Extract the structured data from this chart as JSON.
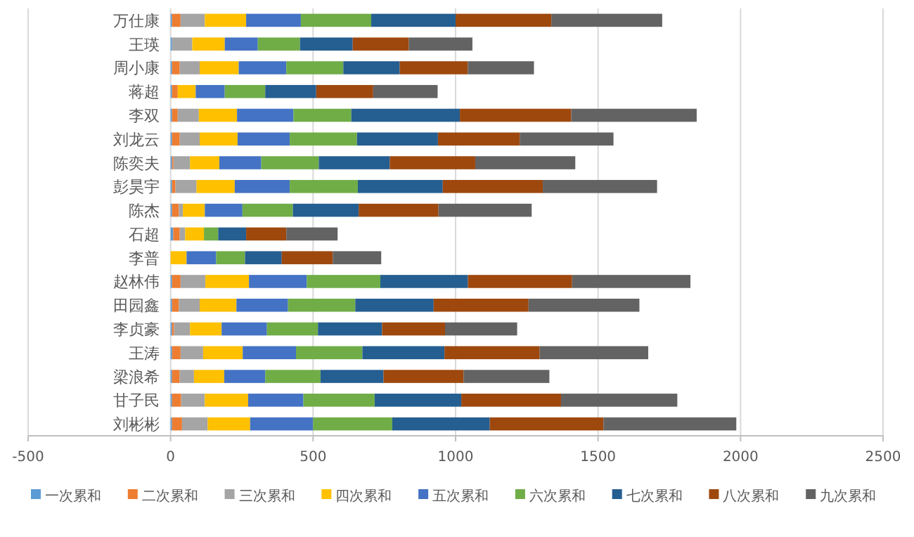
{
  "chart_data": {
    "type": "bar",
    "orientation": "horizontal",
    "stacked": true,
    "categories": [
      "万仕康",
      "王瑛",
      "周小康",
      "蒋超",
      "李双",
      "刘龙云",
      "陈奕夫",
      "彭昊宇",
      "陈杰",
      "石超",
      "李普",
      "赵林伟",
      "田园鑫",
      "李贞豪",
      "王涛",
      "梁浪希",
      "甘子民",
      "刘彬彬"
    ],
    "series": [
      {
        "name": "一次累和",
        "color": "#5b9bd5",
        "values": [
          5,
          5,
          5,
          5,
          5,
          5,
          5,
          5,
          5,
          9,
          0,
          5,
          5,
          5,
          5,
          5,
          5,
          5
        ]
      },
      {
        "name": "二次累和",
        "color": "#ed7d31",
        "values": [
          30,
          0,
          27,
          20,
          20,
          27,
          5,
          12,
          24,
          23,
          0,
          30,
          24,
          7,
          30,
          27,
          32,
          35
        ]
      },
      {
        "name": "三次累和",
        "color": "#a5a5a5",
        "values": [
          85,
          71,
          70,
          0,
          74,
          70,
          58,
          74,
          14,
          19,
          0,
          87,
          73,
          56,
          79,
          50,
          83,
          90
        ]
      },
      {
        "name": "四次累和",
        "color": "#ffc000",
        "values": [
          145,
          114,
          137,
          63,
          134,
          133,
          103,
          134,
          77,
          66,
          56,
          153,
          129,
          111,
          139,
          106,
          152,
          149
        ]
      },
      {
        "name": "五次累和",
        "color": "#4472c4",
        "values": [
          192,
          116,
          167,
          102,
          198,
          183,
          147,
          193,
          132,
          0,
          104,
          203,
          181,
          159,
          187,
          144,
          194,
          221
        ]
      },
      {
        "name": "六次累和",
        "color": "#70ad47",
        "values": [
          247,
          148,
          200,
          142,
          203,
          236,
          202,
          239,
          177,
          50,
          101,
          258,
          236,
          179,
          233,
          194,
          250,
          278
        ]
      },
      {
        "name": "七次累和",
        "color": "#255e91",
        "values": [
          296,
          185,
          198,
          179,
          381,
          284,
          249,
          298,
          231,
          98,
          129,
          307,
          275,
          225,
          288,
          221,
          304,
          342
        ]
      },
      {
        "name": "八次累和",
        "color": "#9e480e",
        "values": [
          336,
          197,
          239,
          200,
          391,
          287,
          300,
          351,
          280,
          141,
          179,
          366,
          333,
          221,
          334,
          281,
          350,
          399
        ]
      },
      {
        "name": "九次累和",
        "color": "#636363",
        "values": [
          389,
          223,
          232,
          226,
          440,
          329,
          351,
          401,
          327,
          180,
          170,
          415,
          389,
          253,
          381,
          301,
          408,
          466
        ]
      }
    ],
    "xlim": [
      -500,
      2500
    ],
    "xticks": [
      -500,
      0,
      500,
      1000,
      1500,
      2000,
      2500
    ],
    "grid": "x",
    "legend": "bottom"
  }
}
